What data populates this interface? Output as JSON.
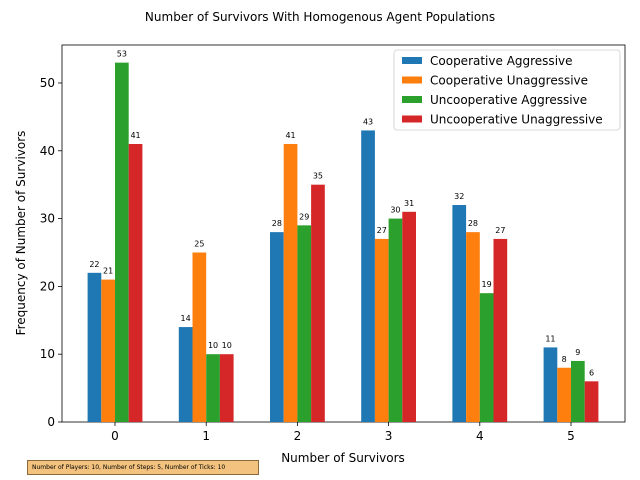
{
  "chart_data": {
    "type": "bar",
    "title": "Number of Survivors With Homogenous Agent Populations",
    "xlabel": "Number of Survivors",
    "ylabel": "Frequency of Number of Survivors",
    "categories": [
      "0",
      "1",
      "2",
      "3",
      "4",
      "5"
    ],
    "ylim": [
      0,
      55.6
    ],
    "yticks": [
      0,
      10,
      20,
      30,
      40,
      50
    ],
    "grid": false,
    "legend_position": "top-right",
    "series": [
      {
        "name": "Cooperative Aggressive",
        "color": "#1f77b4",
        "values": [
          22,
          14,
          28,
          43,
          32,
          11
        ]
      },
      {
        "name": "Cooperative Unaggressive",
        "color": "#ff7f0e",
        "values": [
          21,
          25,
          41,
          27,
          28,
          8
        ]
      },
      {
        "name": "Uncooperative Aggressive",
        "color": "#2ca02c",
        "values": [
          53,
          10,
          29,
          30,
          19,
          9
        ]
      },
      {
        "name": "Uncooperative Unaggressive",
        "color": "#d62728",
        "values": [
          41,
          10,
          35,
          31,
          27,
          6
        ]
      }
    ],
    "footnote": "Number of Players: 10, Number of Steps: 5, Number of Ticks: 10"
  }
}
